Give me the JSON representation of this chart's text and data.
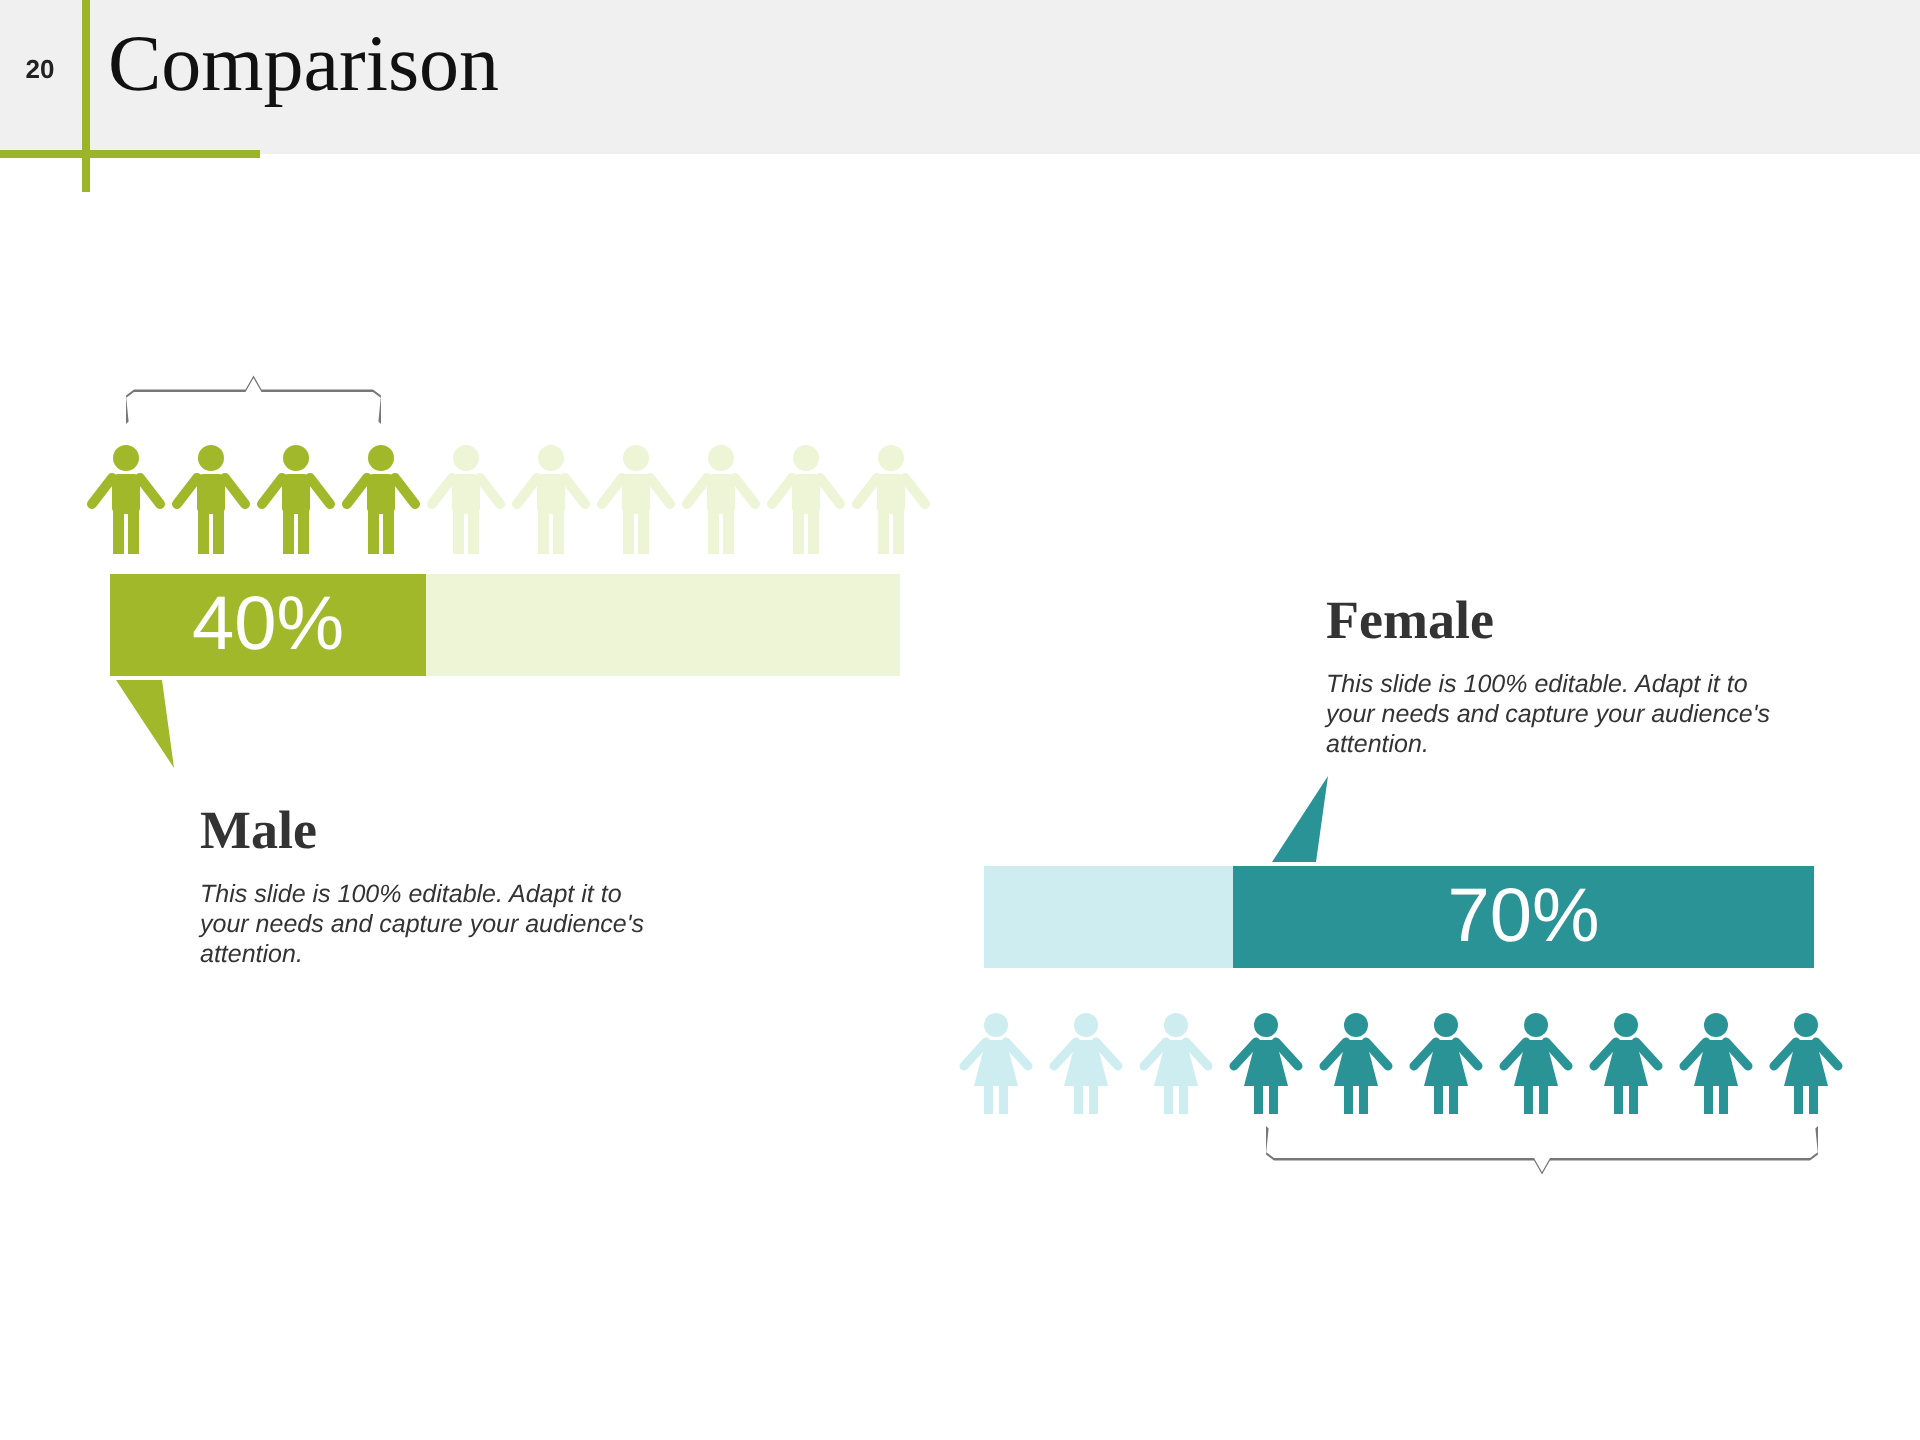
{
  "chart_data": [
    {
      "type": "bar",
      "orientation": "horizontal",
      "stacked": true,
      "title": "Comparison",
      "subtitle": "Male",
      "categories": [
        null
      ],
      "series": [
        {
          "color": "#a0b82a",
          "values": [
            40
          ],
          "value_labels": [
            "40%"
          ]
        },
        {
          "color": "#eef4d6",
          "values": [
            60
          ]
        }
      ],
      "annotations": [
        "20",
        "This slide is 100% editable. Adapt it to your needs and capture your audience's attention."
      ]
    },
    {
      "type": "bar",
      "orientation": "horizontal",
      "stacked": true,
      "subtitle": "Female",
      "categories": [
        null
      ],
      "series": [
        {
          "color": "#2a9396",
          "values": [
            70
          ],
          "value_labels": [
            "70%"
          ]
        },
        {
          "color": "#ceedf0",
          "values": [
            30
          ]
        }
      ],
      "annotations": [
        "This slide is 100% editable. Adapt it to your needs and capture your audience's attention."
      ]
    }
  ]
}
